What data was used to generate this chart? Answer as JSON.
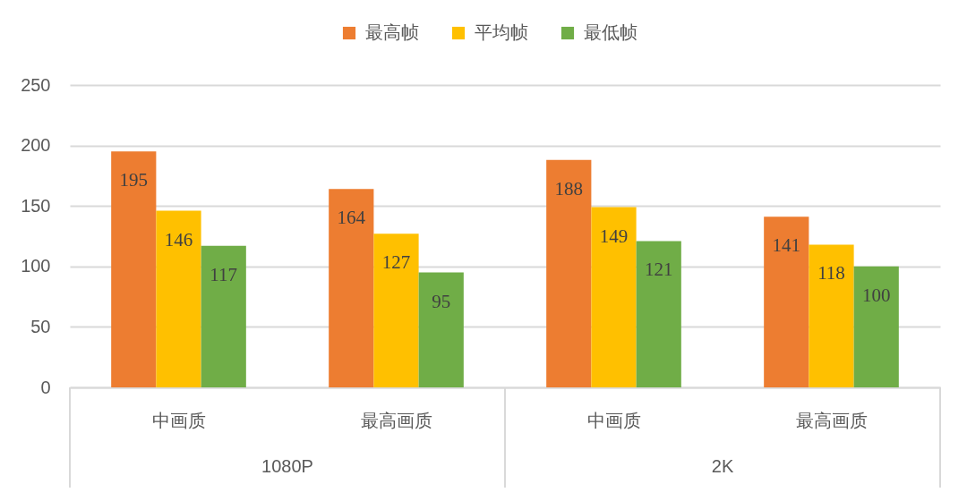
{
  "chart_data": {
    "type": "bar",
    "categories": [
      "中画质",
      "最高画质",
      "中画质",
      "最高画质"
    ],
    "series": [
      {
        "name": "最高帧",
        "color": "#ed7d31",
        "values": [
          195,
          164,
          188,
          141
        ]
      },
      {
        "name": "平均帧",
        "color": "#ffc000",
        "values": [
          146,
          127,
          149,
          118
        ]
      },
      {
        "name": "最低帧",
        "color": "#70ad47",
        "values": [
          117,
          95,
          121,
          100
        ]
      }
    ],
    "ylim": [
      0,
      250
    ],
    "yticks": [
      0,
      50,
      100,
      150,
      200,
      250
    ],
    "grid": "y",
    "legend": "top",
    "data_labels": true,
    "annotations": [
      "1080P",
      "2K"
    ]
  }
}
